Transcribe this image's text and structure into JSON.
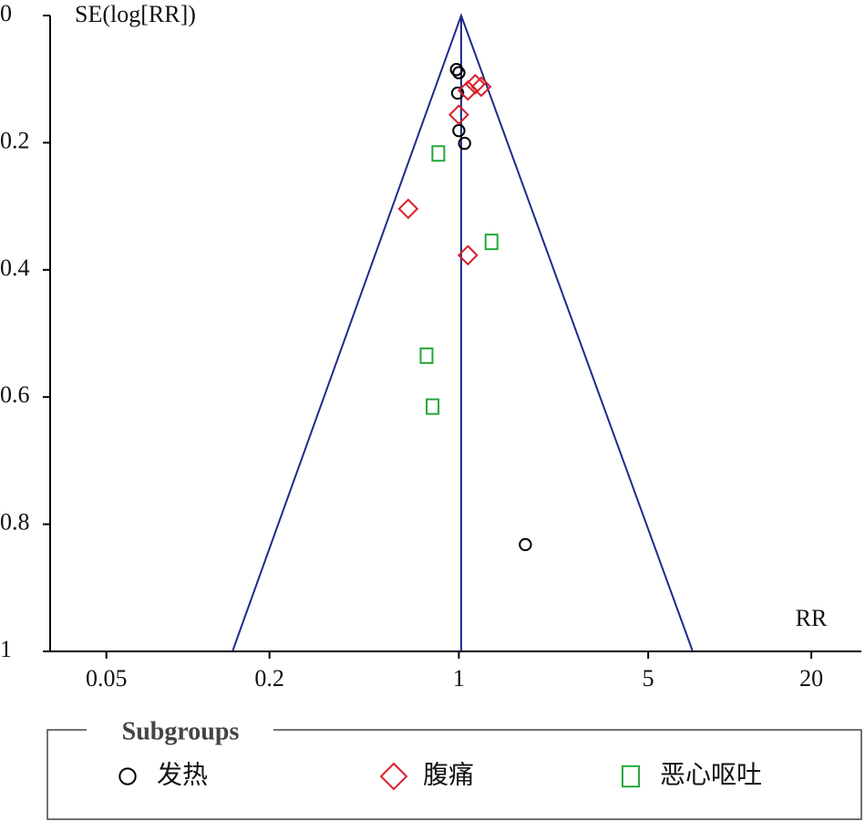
{
  "chart_data": {
    "type": "scatter",
    "y_label": "SE(log[RR])",
    "x_label": "RR",
    "xscale": "log",
    "y_inverted": true,
    "xlim": [
      0.031,
      30.6
    ],
    "ylim": [
      0,
      1
    ],
    "xticks": [
      0.05,
      0.2,
      1,
      5,
      20
    ],
    "yticks": [
      0,
      0.2,
      0.4,
      0.6,
      0.8,
      1
    ],
    "pooled": 1.02,
    "funnel": {
      "color": "#1f2a8a",
      "x": [
        0.146,
        1.02,
        7.3
      ],
      "y": [
        1,
        0,
        1
      ]
    },
    "legend_title": "Subgroups",
    "series": [
      {
        "name": "发热",
        "color": "#000000",
        "marker": "circle",
        "x": [
          0.98,
          1.0,
          0.99,
          1.0,
          1.05,
          1.76
        ],
        "values": [
          0.085,
          0.09,
          0.122,
          0.181,
          0.201,
          0.832
        ]
      },
      {
        "name": "腹痛",
        "color": "#d8202a",
        "marker": "diamond",
        "x": [
          1.15,
          1.21,
          1.08,
          1.0,
          0.65,
          1.08
        ],
        "values": [
          0.108,
          0.112,
          0.118,
          0.156,
          0.304,
          0.377
        ]
      },
      {
        "name": "恶心呕吐",
        "color": "#22a83a",
        "marker": "square",
        "x": [
          0.84,
          1.32,
          0.76,
          0.8
        ],
        "values": [
          0.217,
          0.356,
          0.535,
          0.615
        ]
      }
    ]
  }
}
